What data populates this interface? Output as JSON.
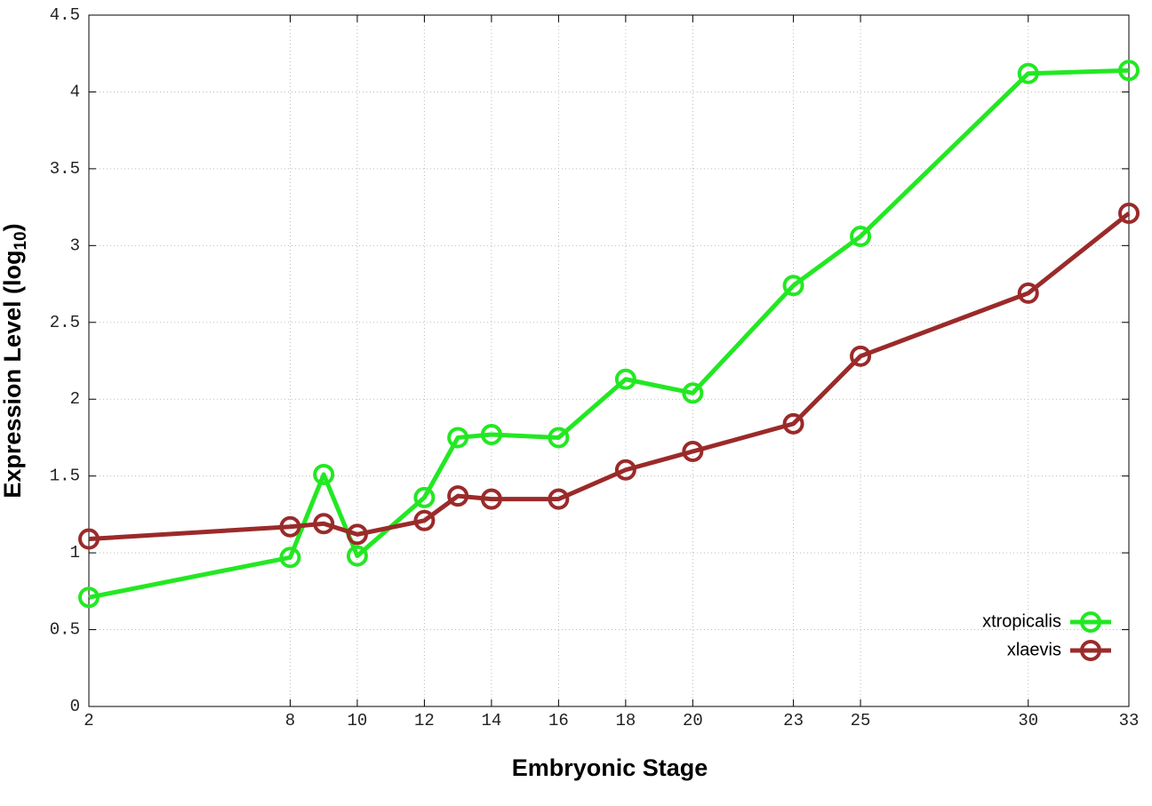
{
  "chart_data": {
    "type": "line",
    "x_label": "Embryonic Stage",
    "y_label": "Expression Level (log",
    "y_label_subscript": "10",
    "y_label_end": ")",
    "x": [
      2,
      8,
      9,
      10,
      12,
      13,
      14,
      16,
      18,
      20,
      23,
      25,
      30,
      33
    ],
    "series": [
      {
        "name": "xtropicalis",
        "color": "#22e822",
        "values": [
          0.71,
          0.97,
          1.51,
          0.98,
          1.36,
          1.75,
          1.77,
          1.75,
          2.13,
          2.04,
          2.74,
          3.06,
          4.12,
          4.14
        ]
      },
      {
        "name": "xlaevis",
        "color": "#9b2a2a",
        "values": [
          1.09,
          1.17,
          1.19,
          1.12,
          1.21,
          1.37,
          1.35,
          1.35,
          1.54,
          1.66,
          1.84,
          2.28,
          2.69,
          3.21
        ]
      }
    ],
    "xlim": [
      2,
      33
    ],
    "xticks": [
      2,
      8,
      10,
      12,
      14,
      16,
      18,
      20,
      23,
      25,
      30,
      33
    ],
    "ylim": [
      0,
      4.5
    ],
    "yticks": [
      0,
      0.5,
      1,
      1.5,
      2,
      2.5,
      3,
      3.5,
      4,
      4.5
    ],
    "grid": true,
    "legend_position": "lower-right"
  }
}
